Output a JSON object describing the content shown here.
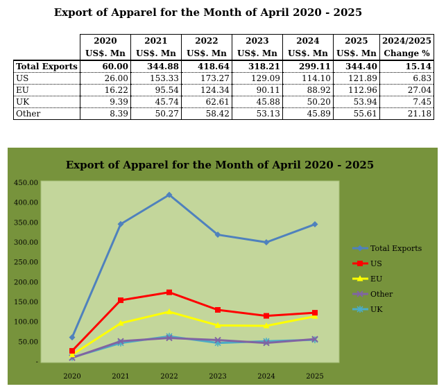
{
  "page_title": "Export of Apparel for the Month of April 2020 - 2025",
  "table": {
    "header_years": [
      "2020",
      "2021",
      "2022",
      "2023",
      "2024",
      "2025",
      "2024/2025"
    ],
    "header_units": [
      "US$. Mn",
      "US$. Mn",
      "US$. Mn",
      "US$. Mn",
      "US$. Mn",
      "US$. Mn",
      "Change %"
    ],
    "rows": [
      {
        "label": "Total Exports",
        "values": [
          "60.00",
          "344.88",
          "418.64",
          "318.21",
          "299.11",
          "344.40",
          "15.14"
        ]
      },
      {
        "label": "US",
        "values": [
          "26.00",
          "153.33",
          "173.27",
          "129.09",
          "114.10",
          "121.89",
          "6.83"
        ]
      },
      {
        "label": "EU",
        "values": [
          "16.22",
          "95.54",
          "124.34",
          "90.11",
          "88.92",
          "112.96",
          "27.04"
        ]
      },
      {
        "label": "UK",
        "values": [
          "9.39",
          "45.74",
          "62.61",
          "45.88",
          "50.20",
          "53.94",
          "7.45"
        ]
      },
      {
        "label": "Other",
        "values": [
          "8.39",
          "50.27",
          "58.42",
          "53.13",
          "45.89",
          "55.61",
          "21.18"
        ]
      }
    ]
  },
  "chart_data": {
    "type": "line",
    "title": "Export of Apparel for the Month of April 2020 - 2025",
    "categories": [
      "2020",
      "2021",
      "2022",
      "2023",
      "2024",
      "2025"
    ],
    "ylim": [
      0,
      450
    ],
    "yticks": [
      "-",
      "50.00",
      "100.00",
      "150.00",
      "200.00",
      "250.00",
      "300.00",
      "350.00",
      "400.00",
      "450.00"
    ],
    "grid": false,
    "legend_position": "right",
    "series": [
      {
        "name": "Total Exports",
        "values": [
          60.0,
          344.88,
          418.64,
          318.21,
          299.11,
          344.4
        ],
        "color": "#4f81bd",
        "marker": "diamond"
      },
      {
        "name": "US",
        "values": [
          26.0,
          153.33,
          173.27,
          129.09,
          114.1,
          121.89
        ],
        "color": "#ff0000",
        "marker": "square"
      },
      {
        "name": "EU",
        "values": [
          16.22,
          95.54,
          124.34,
          90.11,
          88.92,
          112.96
        ],
        "color": "#ffff00",
        "marker": "triangle"
      },
      {
        "name": "Other",
        "values": [
          8.39,
          50.27,
          58.42,
          53.13,
          45.89,
          55.61
        ],
        "color": "#8064a2",
        "marker": "x"
      },
      {
        "name": "UK",
        "values": [
          9.39,
          45.74,
          62.61,
          45.88,
          50.2,
          53.94
        ],
        "color": "#4bacc6",
        "marker": "star"
      }
    ],
    "colors": {
      "outer_background": "#77933c",
      "plot_background": "#c3d69b"
    }
  }
}
